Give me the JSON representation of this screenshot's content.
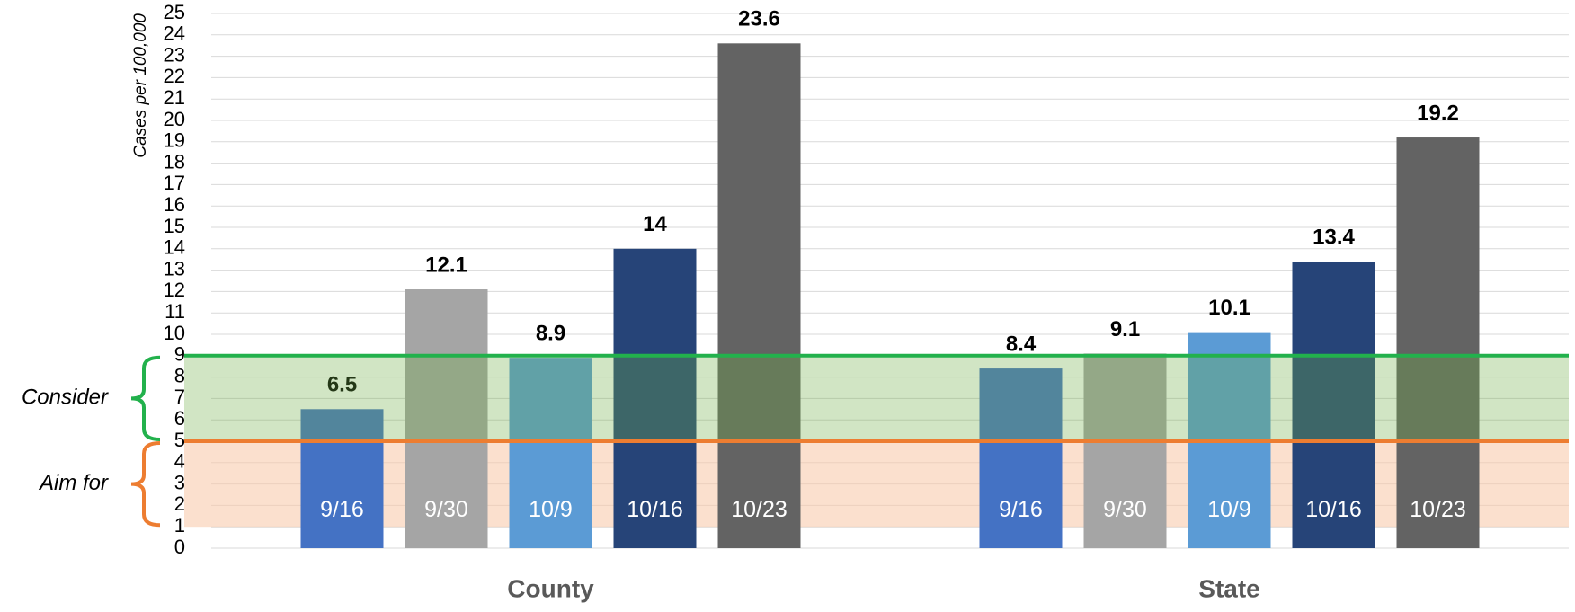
{
  "chart_data": {
    "type": "bar",
    "y_label": "Cases per 100,000",
    "categories": [
      "County",
      "State"
    ],
    "series": [
      {
        "name": "9/16",
        "color": "#4472c4",
        "values": [
          6.5,
          8.4
        ]
      },
      {
        "name": "9/30",
        "color": "#a5a5a5",
        "values": [
          12.1,
          9.1
        ]
      },
      {
        "name": "10/9",
        "color": "#5b9bd5",
        "values": [
          8.9,
          10.1
        ]
      },
      {
        "name": "10/16",
        "color": "#264478",
        "values": [
          14,
          13.4
        ]
      },
      {
        "name": "10/23",
        "color": "#636363",
        "values": [
          23.6,
          19.2
        ]
      }
    ],
    "ylim": [
      0,
      25
    ],
    "yticks": [
      0,
      1,
      2,
      3,
      4,
      5,
      6,
      7,
      8,
      9,
      10,
      11,
      12,
      13,
      14,
      15,
      16,
      17,
      18,
      19,
      20,
      21,
      22,
      23,
      24,
      25
    ],
    "grid": true,
    "bands": [
      {
        "label": "Aim for",
        "range": [
          1,
          5
        ],
        "color": "#f8cbad",
        "line_color": "#ed7d31"
      },
      {
        "label": "Consider",
        "range": [
          5,
          9
        ],
        "color": "#70ad47",
        "line_color": "#22b14c"
      }
    ]
  }
}
